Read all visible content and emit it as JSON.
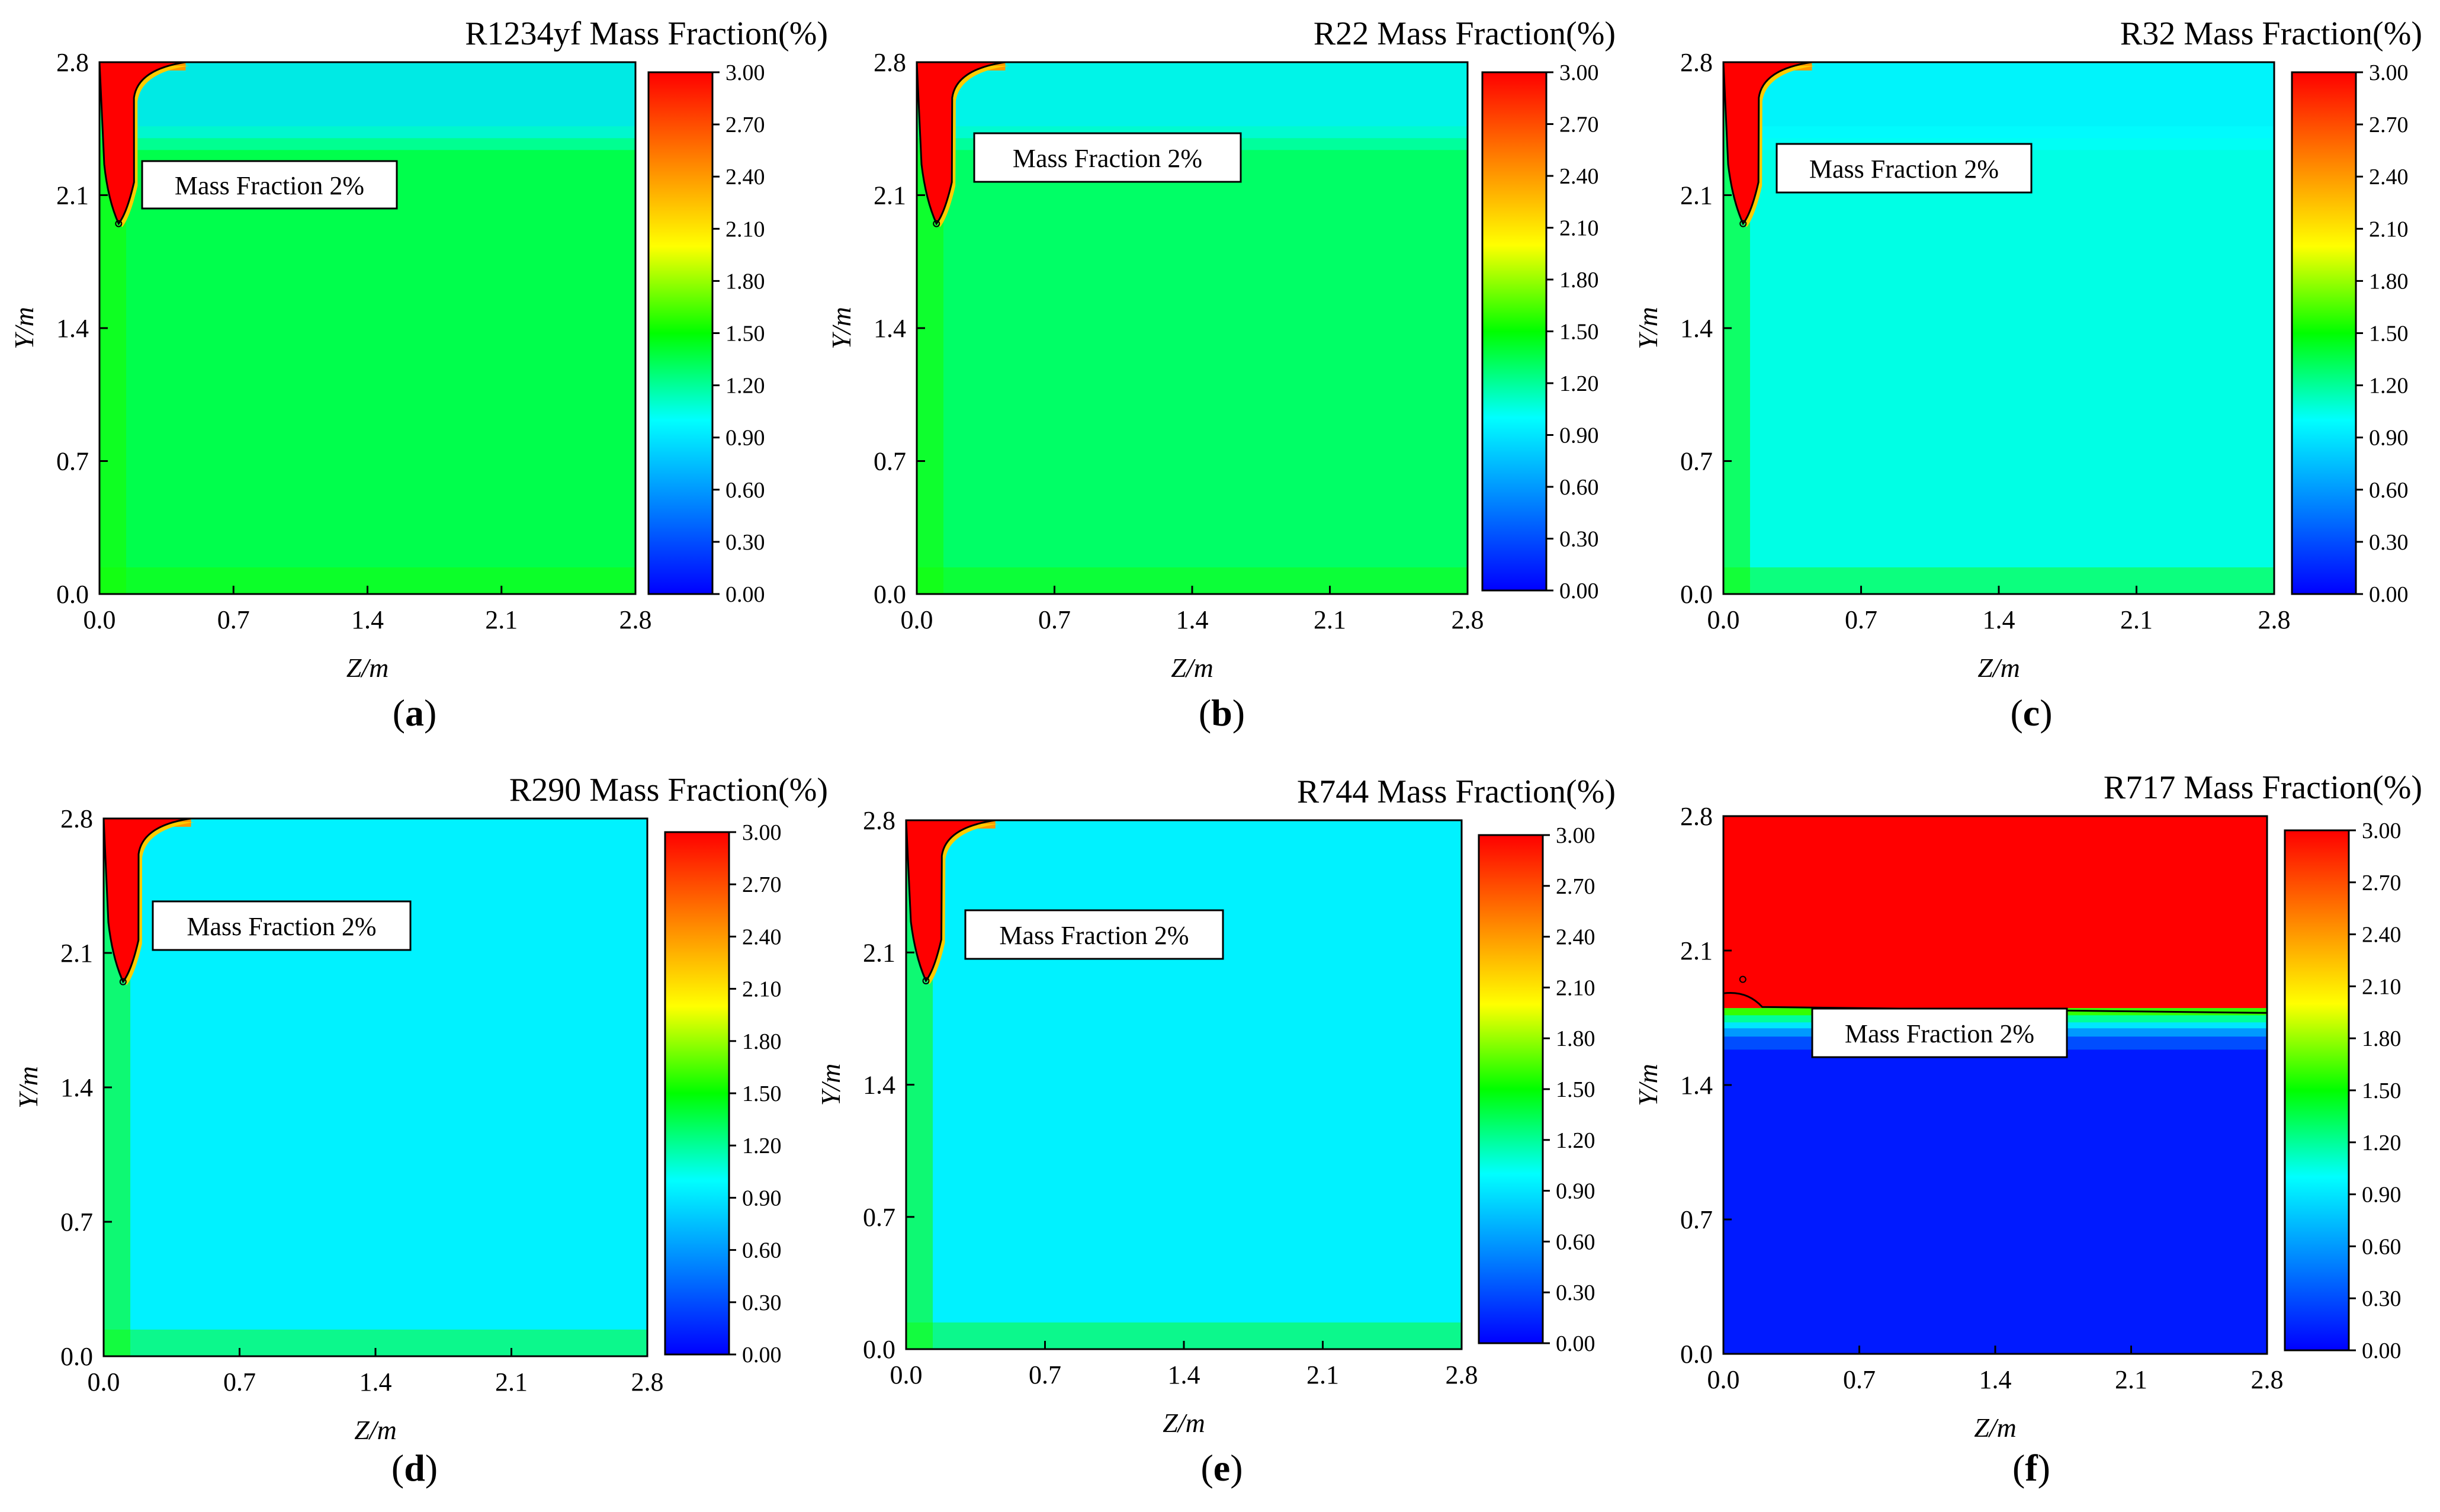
{
  "figure": {
    "colorbar": {
      "ticks": [
        "3.00",
        "2.70",
        "2.40",
        "2.10",
        "1.80",
        "1.50",
        "1.20",
        "0.90",
        "0.60",
        "0.30",
        "0.00"
      ],
      "colors": [
        "#0000ff",
        "#0080ff",
        "#00ffff",
        "#00ff00",
        "#ffff00",
        "#ff8000",
        "#ff0000"
      ]
    },
    "axis_ticks": [
      "0.0",
      "0.7",
      "1.4",
      "2.1",
      "2.8"
    ],
    "xlabel": "Z/m",
    "ylabel": "Y/m",
    "annotation": "Mass Fraction 2%"
  },
  "chart_data": [
    {
      "type": "heatmap",
      "title": "R1234yf Mass Fraction(%)",
      "label": "(a)",
      "xlabel": "Z/m",
      "ylabel": "Y/m",
      "xlim": [
        0,
        2.8
      ],
      "ylim": [
        0,
        2.8
      ],
      "color_range": [
        0,
        3
      ],
      "background_value": 1.35,
      "upper_band_value": 0.9,
      "upper_band_from_y": 2.4,
      "plume": {
        "z": 0.1,
        "tip_y": 1.95,
        "value": 3.0
      },
      "contour_2pct": "plume near ceiling at z≈0.1 m reaching down to y≈1.95 m"
    },
    {
      "type": "heatmap",
      "title": "R22 Mass Fraction(%)",
      "label": "(b)",
      "xlabel": "Z/m",
      "ylabel": "Y/m",
      "xlim": [
        0,
        2.8
      ],
      "ylim": [
        0,
        2.8
      ],
      "color_range": [
        0,
        3
      ],
      "background_value": 1.3,
      "upper_band_value": 0.95,
      "upper_band_from_y": 2.4,
      "plume": {
        "z": 0.1,
        "tip_y": 1.95,
        "value": 3.0
      },
      "contour_2pct": "plume near ceiling at z≈0.1 m reaching down to y≈1.95 m"
    },
    {
      "type": "heatmap",
      "title": "R32 Mass Fraction(%)",
      "label": "(c)",
      "xlabel": "Z/m",
      "ylabel": "Y/m",
      "xlim": [
        0,
        2.8
      ],
      "ylim": [
        0,
        2.8
      ],
      "color_range": [
        0,
        3
      ],
      "background_value": 1.05,
      "upper_band_value": 0.95,
      "upper_band_from_y": 2.4,
      "plume": {
        "z": 0.1,
        "tip_y": 1.95,
        "value": 3.0
      },
      "contour_2pct": "plume near ceiling at z≈0.1 m reaching down to y≈1.95 m"
    },
    {
      "type": "heatmap",
      "title": "R290 Mass Fraction(%)",
      "label": "(d)",
      "xlabel": "Z/m",
      "ylabel": "Y/m",
      "xlim": [
        0,
        2.8
      ],
      "ylim": [
        0,
        2.8
      ],
      "color_range": [
        0,
        3
      ],
      "background_value": 0.95,
      "upper_band_value": 0.95,
      "upper_band_from_y": 2.4,
      "plume": {
        "z": 0.1,
        "tip_y": 1.95,
        "value": 3.0
      },
      "contour_2pct": "plume near ceiling at z≈0.1 m reaching down to y≈1.95 m"
    },
    {
      "type": "heatmap",
      "title": "R744 Mass Fraction(%)",
      "label": "(e)",
      "xlabel": "Z/m",
      "ylabel": "Y/m",
      "xlim": [
        0,
        2.8
      ],
      "ylim": [
        0,
        2.8
      ],
      "color_range": [
        0,
        3
      ],
      "background_value": 0.95,
      "upper_band_value": 0.95,
      "upper_band_from_y": 2.4,
      "plume": {
        "z": 0.1,
        "tip_y": 1.95,
        "value": 3.0
      },
      "contour_2pct": "plume near ceiling at z≈0.1 m reaching down to y≈1.95 m"
    },
    {
      "type": "heatmap",
      "title": "R717 Mass Fraction(%)",
      "label": "(f)",
      "xlabel": "Z/m",
      "ylabel": "Y/m",
      "xlim": [
        0,
        2.8
      ],
      "ylim": [
        0,
        2.8
      ],
      "color_range": [
        0,
        3
      ],
      "background_value": 0.1,
      "stratified": true,
      "upper_layer_value": 3.0,
      "upper_layer_from_y": 1.8,
      "contour_2pct": "horizontal interface at y≈1.8 m across the room"
    }
  ]
}
